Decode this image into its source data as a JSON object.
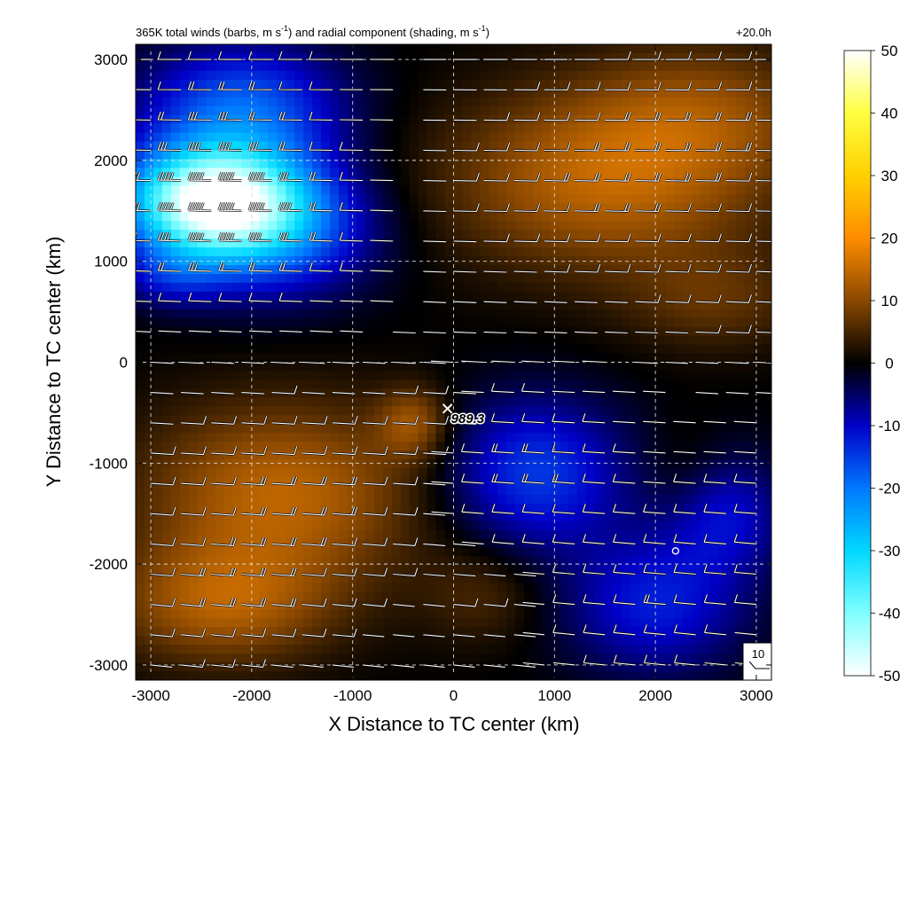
{
  "chart_data": {
    "type": "heatmap",
    "title": {
      "prefix": "365K total winds (barbs, m s",
      "sup1": "-1",
      "middle": ") and radial component (shading, m s",
      "sup2": "-1",
      "suffix": ")"
    },
    "time_label": "+20.0h",
    "xlabel": "X Distance to TC center (km)",
    "ylabel": "Y Distance to TC center (km)",
    "xlim": [
      -3150,
      3150
    ],
    "ylim": [
      -3150,
      3150
    ],
    "xticks": [
      -3000,
      -2000,
      -1000,
      0,
      1000,
      2000,
      3000
    ],
    "yticks": [
      -3000,
      -2000,
      -1000,
      0,
      1000,
      2000,
      3000
    ],
    "grid": true,
    "center_marker": {
      "x": -60,
      "y": -460,
      "symbol": "×",
      "label": "989.3"
    },
    "circle_marker": {
      "x": 2200,
      "y": -1870
    },
    "barb_legend": {
      "value": "10",
      "position": "bottom-right"
    },
    "colorbar": {
      "min": -50,
      "max": 50,
      "ticks": [
        50,
        40,
        30,
        20,
        10,
        0,
        -10,
        -20,
        -30,
        -40,
        -50
      ],
      "colors": {
        "-50": "#ffffff",
        "-40": "#80ffff",
        "-30": "#00d8ff",
        "-20": "#0078ff",
        "-10": "#0000c8",
        "0": "#000000",
        "10": "#8a4800",
        "20": "#ff8c00",
        "30": "#ffd000",
        "40": "#ffff40",
        "50": "#ffffff"
      }
    },
    "radial_wind_field": [
      {
        "x": -2400,
        "y": 1600,
        "sx": 850,
        "sy": 520,
        "value": -46
      },
      {
        "x": -1800,
        "y": 1300,
        "sx": 1000,
        "sy": 650,
        "value": -18
      },
      {
        "x": -2100,
        "y": 2500,
        "sx": 1000,
        "sy": 650,
        "value": -18
      },
      {
        "x": -2800,
        "y": 850,
        "sx": 500,
        "sy": 300,
        "value": -8
      },
      {
        "x": 1500,
        "y": 1800,
        "sx": 1600,
        "sy": 900,
        "value": 14
      },
      {
        "x": 2500,
        "y": 2500,
        "sx": 1200,
        "sy": 700,
        "value": 8
      },
      {
        "x": 2600,
        "y": 600,
        "sx": 900,
        "sy": 500,
        "value": 6
      },
      {
        "x": -1700,
        "y": -1300,
        "sx": 1400,
        "sy": 900,
        "value": 14
      },
      {
        "x": -2300,
        "y": -2400,
        "sx": 1100,
        "sy": 600,
        "value": 12
      },
      {
        "x": -400,
        "y": -600,
        "sx": 350,
        "sy": 350,
        "value": 10
      },
      {
        "x": 800,
        "y": -1100,
        "sx": 900,
        "sy": 750,
        "value": -15
      },
      {
        "x": 2000,
        "y": -2400,
        "sx": 900,
        "sy": 700,
        "value": -12
      },
      {
        "x": 2700,
        "y": -1500,
        "sx": 600,
        "sy": 600,
        "value": -10
      },
      {
        "x": 300,
        "y": -2300,
        "sx": 600,
        "sy": 500,
        "value": 5
      },
      {
        "x": 2300,
        "y": -1100,
        "sx": 400,
        "sy": 500,
        "value": 3
      }
    ]
  }
}
